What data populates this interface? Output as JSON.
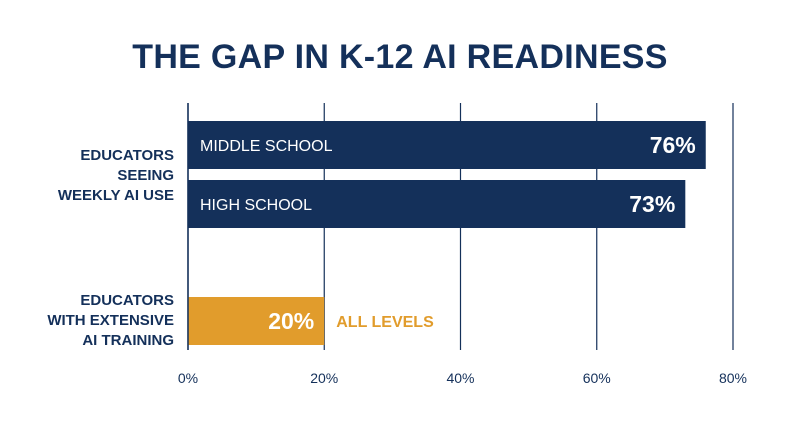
{
  "title": "THE GAP IN K-12 AI READINESS",
  "colors": {
    "primary": "#14305a",
    "accent": "#e19c2c",
    "grid": "#14305a",
    "bar_text": "#ffffff"
  },
  "chart_data": {
    "type": "bar",
    "orientation": "horizontal",
    "title": "THE GAP IN K-12 AI READINESS",
    "xlim": [
      0,
      80
    ],
    "x_ticks": [
      "0%",
      "20%",
      "40%",
      "60%",
      "80%"
    ],
    "grid": true,
    "groups": [
      {
        "label_lines": [
          "EDUCATORS",
          "SEEING",
          "WEEKLY AI USE"
        ],
        "bars": [
          {
            "category": "MIDDLE SCHOOL",
            "value": 76,
            "value_label": "76%"
          },
          {
            "category": "HIGH SCHOOL",
            "value": 73,
            "value_label": "73%"
          }
        ]
      },
      {
        "label_lines": [
          "EDUCATORS",
          "WITH EXTENSIVE",
          "AI TRAINING"
        ],
        "bars": [
          {
            "category": "ALL LEVELS",
            "value": 20,
            "value_label": "20%",
            "highlight": true
          }
        ]
      }
    ]
  }
}
